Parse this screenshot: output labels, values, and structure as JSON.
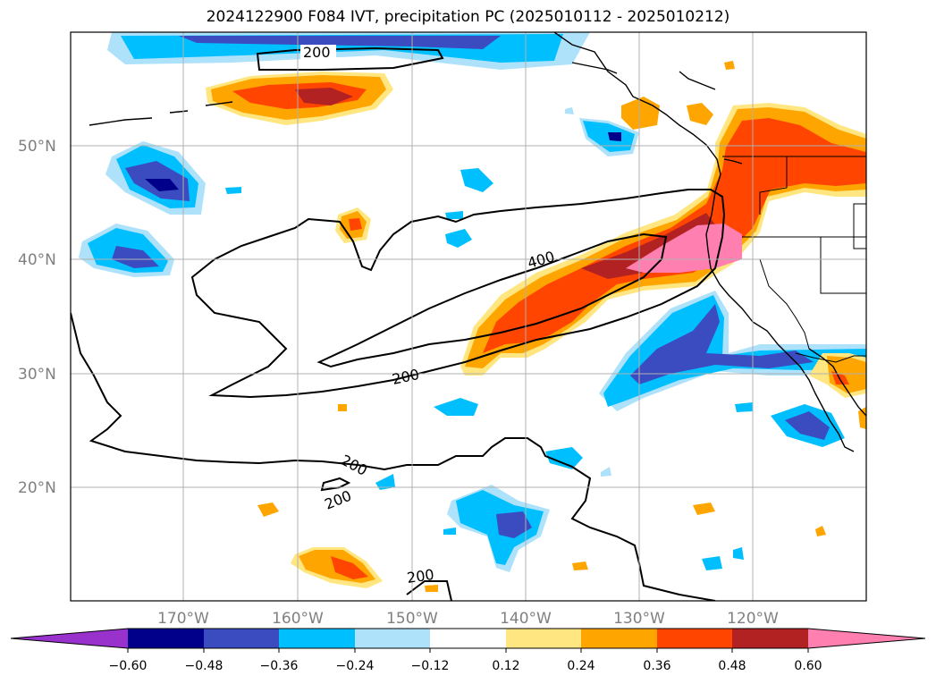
{
  "title": "2024122900 F084 IVT, precipitation PC (2025010112 - 2025010212)",
  "map": {
    "lat_labels": [
      "50°N",
      "40°N",
      "30°N",
      "20°N"
    ],
    "lon_labels": [
      "170°W",
      "160°W",
      "150°W",
      "140°W",
      "130°W",
      "120°W"
    ],
    "gridlines": true,
    "contour_color": "#000000",
    "contour_labels": [
      "200",
      "400",
      "200",
      "200",
      "200",
      "200"
    ]
  },
  "colorbar": {
    "ticks": [
      "−0.60",
      "−0.48",
      "−0.36",
      "−0.24",
      "−0.12",
      "0.12",
      "0.24",
      "0.36",
      "0.48",
      "0.60"
    ],
    "colors": [
      "#9932cc",
      "#00008b",
      "#3b4cc0",
      "#00bfff",
      "#aee1fa",
      "#ffffff",
      "#ffe680",
      "#ffa500",
      "#ff4500",
      "#b22222",
      "#ff80b0"
    ]
  }
}
